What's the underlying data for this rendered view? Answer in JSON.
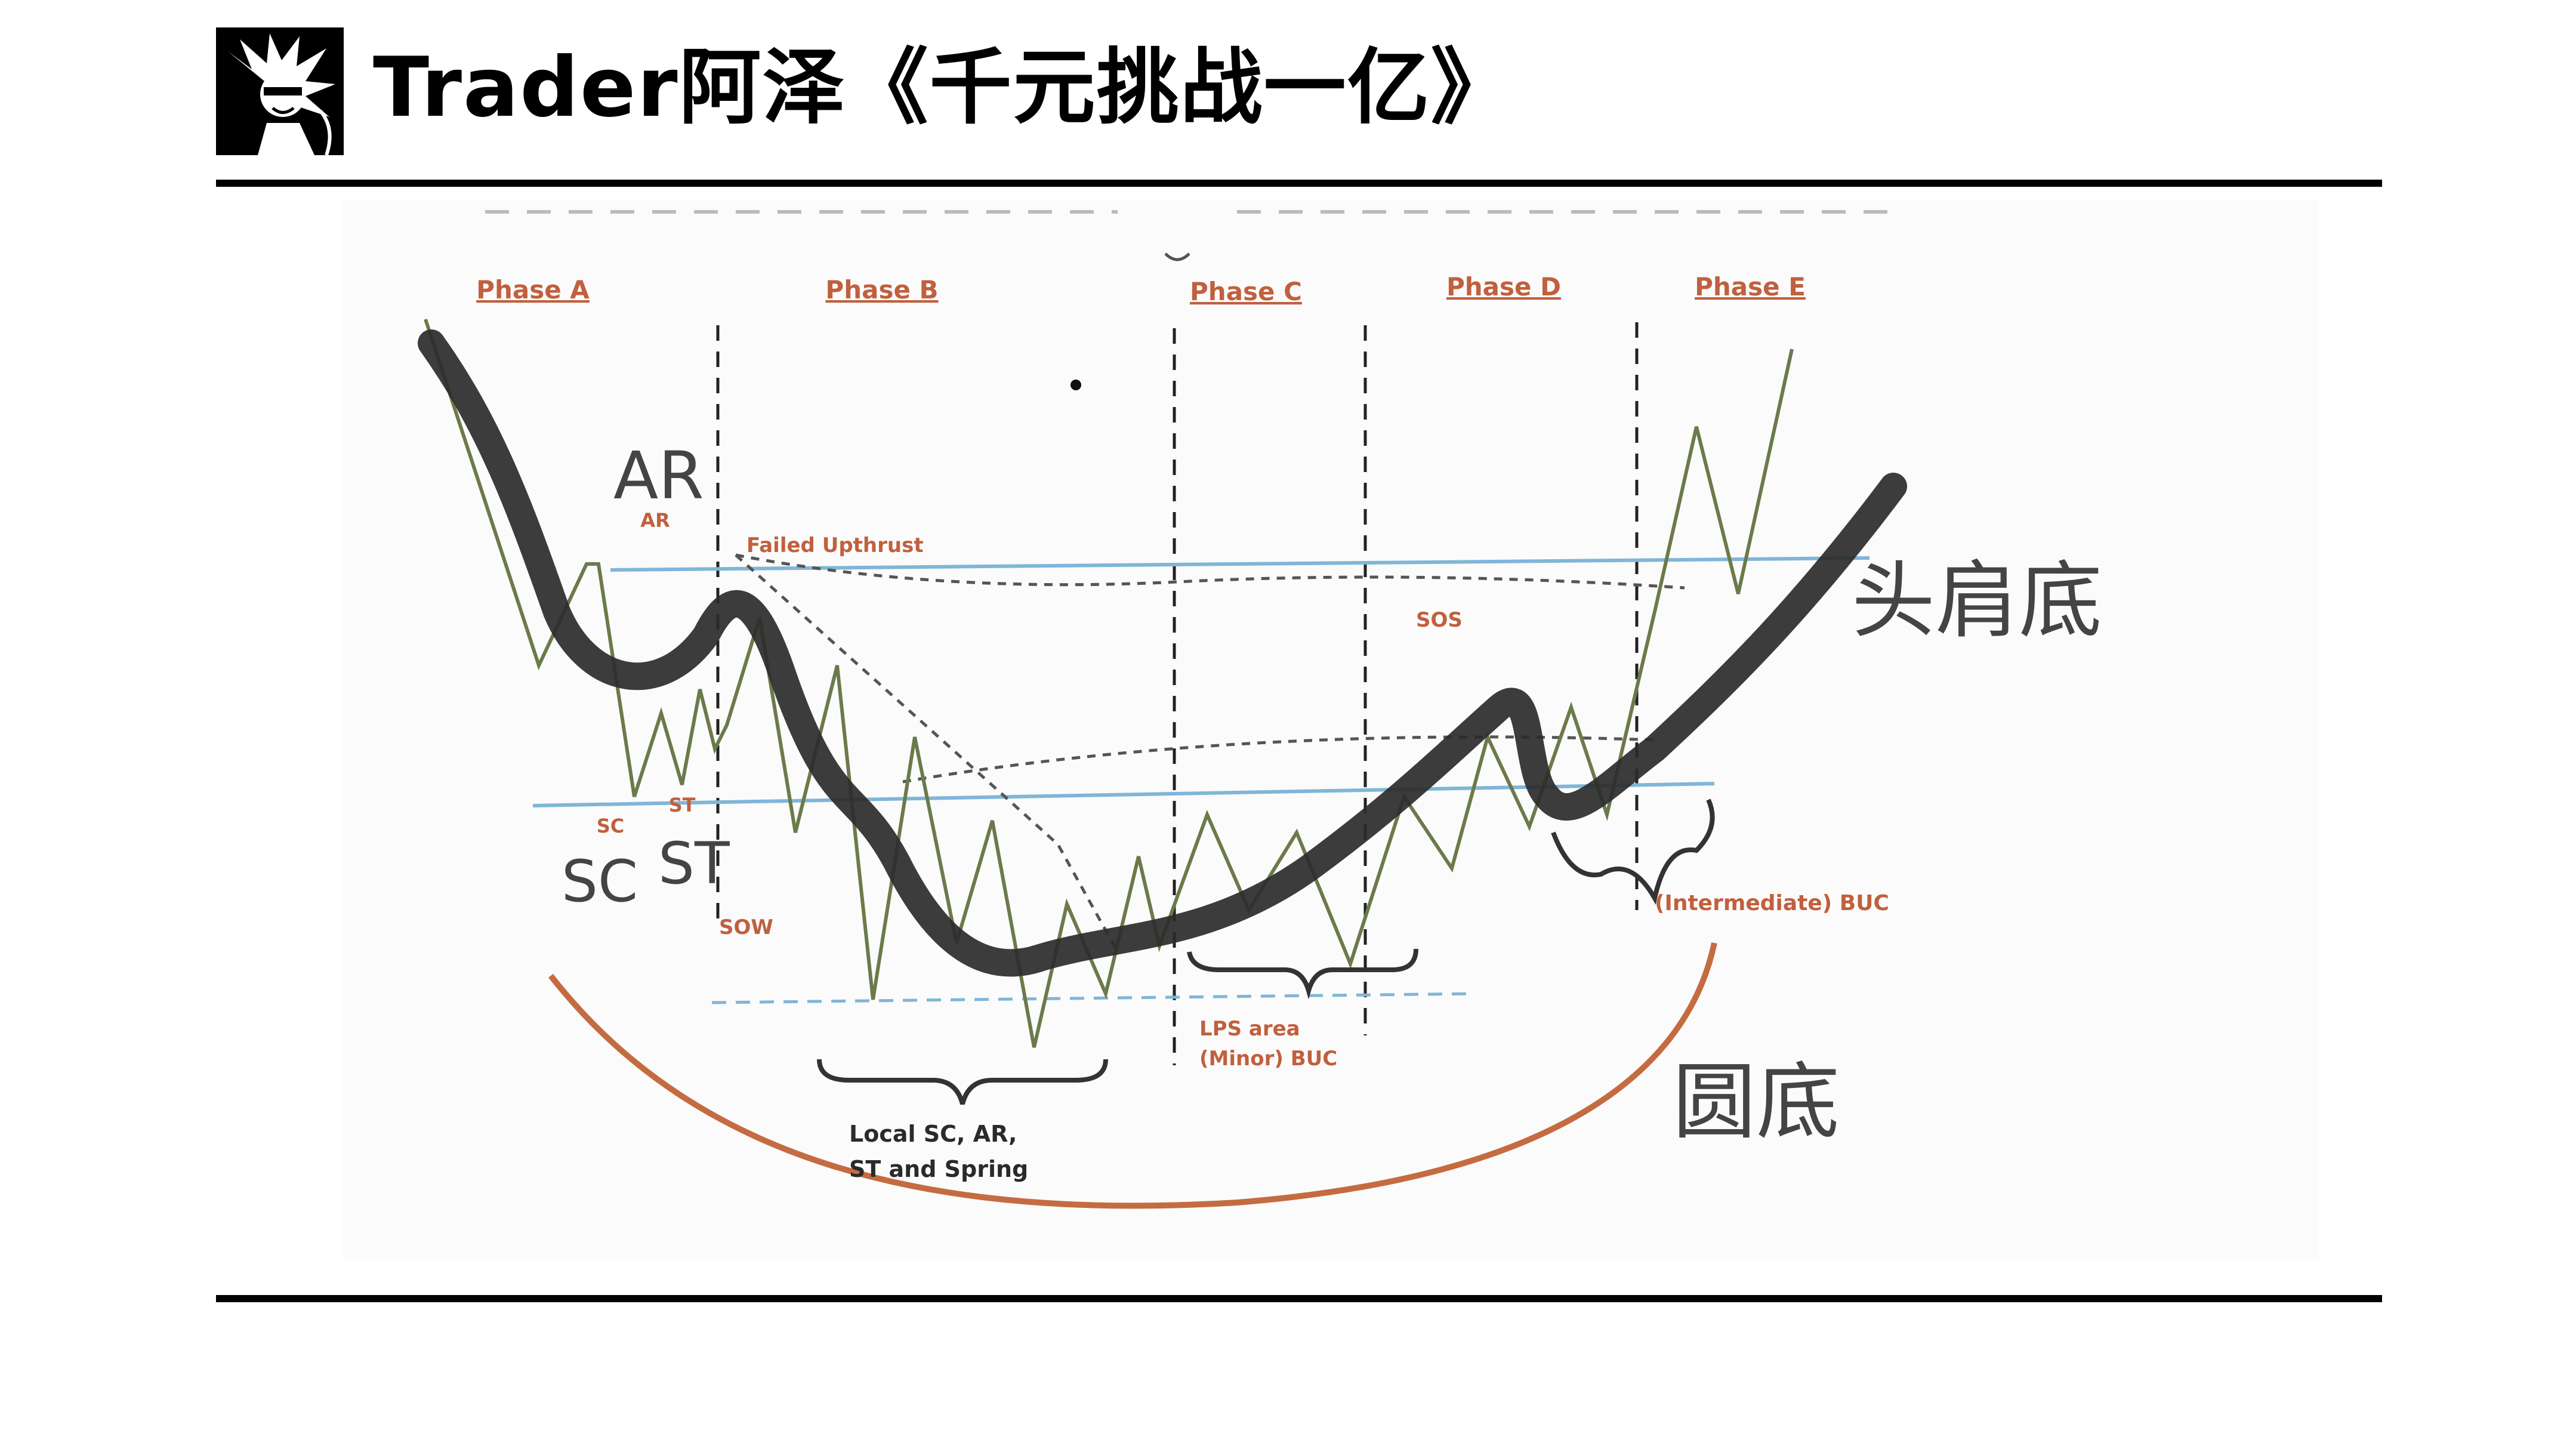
{
  "header": {
    "title": "Trader阿泽《千元挑战一亿》",
    "logo_icon": "cartoon-avatar-logo"
  },
  "diagram": {
    "phases": [
      "Phase A",
      "Phase B",
      "Phase C",
      "Phase D",
      "Phase E"
    ],
    "events": {
      "ar": "AR",
      "failed_upthrust": "Failed Upthrust",
      "sc": "SC",
      "st": "ST",
      "sow": "SOW",
      "sos": "SOS",
      "local": "Local SC, AR,",
      "local2": "ST and Spring",
      "lps": "LPS area",
      "minor_buc": "(Minor) BUC",
      "intermediate_buc": "(Intermediate) BUC"
    },
    "handwritten": {
      "ar": "AR",
      "sc": "SC",
      "st": "ST",
      "head_shoulders_bottom": "头肩底",
      "round_bottom": "圆底"
    },
    "colors": {
      "accent_orange": "#c0603e",
      "support_blue": "#7fb6d8",
      "price_line_green": "#6b7a4a",
      "thick_marker": "#2b2b2b"
    }
  }
}
